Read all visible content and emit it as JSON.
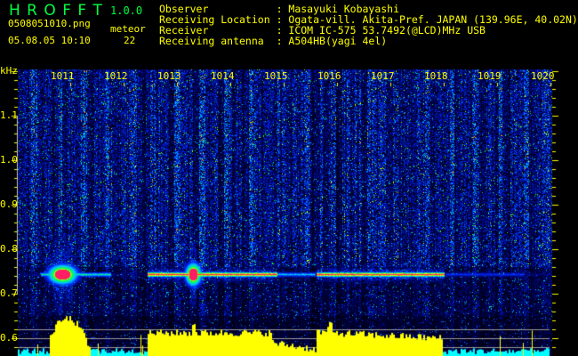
{
  "header": {
    "app_name": "H R O F F T",
    "version": "1.0.0",
    "filename": "0508051010.png",
    "datetime": "05.08.05 10:10",
    "meteor_label": "meteor",
    "meteor_count": "22"
  },
  "info": [
    {
      "label": "Observer          ",
      "value": ": Masayuki Kobayashi"
    },
    {
      "label": "Receiving Location",
      "value": ": Ogata-vill. Akita-Pref. JAPAN (139.96E, 40.02N)"
    },
    {
      "label": "Receiver          ",
      "value": ": ICOM IC-575 53.7492(@LCD)MHz USB"
    },
    {
      "label": "Receiving antenna ",
      "value": ": A504HB(yagi 4el)"
    }
  ],
  "colors": {
    "text": "#ffff00",
    "title": "#00ff40",
    "histogram": "#ffff00",
    "histogram_low": "#00ffff",
    "echo_peak": "#ff2060"
  },
  "chart_data": {
    "type": "heatmap",
    "ylabel": "kHz",
    "x_ticks": [
      "1011",
      "1012",
      "1013",
      "1014",
      "1015",
      "1016",
      "1017",
      "1018",
      "1019",
      "1020"
    ],
    "y_ticks": [
      "1.1",
      "1.0",
      "0.9",
      "0.8",
      "0.7",
      "0.6"
    ],
    "ylim": [
      0.56,
      1.2
    ],
    "echo_frequency_khz": 0.745,
    "major_echoes_time": [
      "10:10.8",
      "10:13.3"
    ],
    "echo_activity_intervals": [
      [
        "10:10.6",
        "10:11.4"
      ],
      [
        "10:12.5",
        "10:15.8"
      ],
      [
        "10:15.8",
        "10:18.1"
      ]
    ]
  }
}
